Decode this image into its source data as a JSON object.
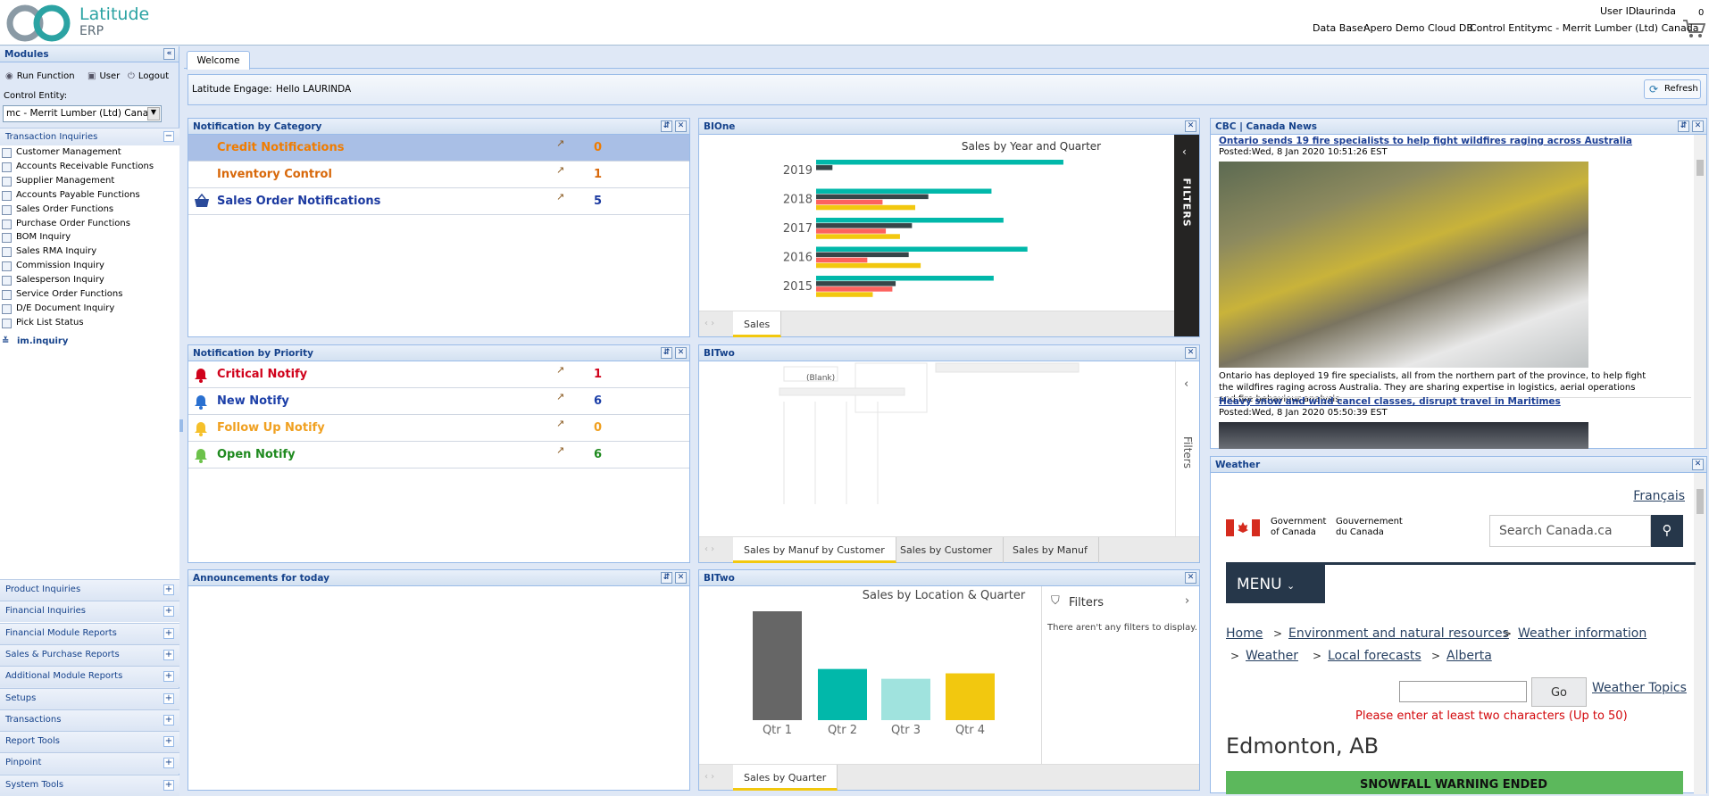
{
  "header": {
    "logo_line1": "Latitude",
    "logo_line2": "ERP",
    "user_id_label": "User ID:",
    "user_id": "laurinda",
    "cart_count": 0,
    "database_label": "Data Base:",
    "database": "Apero Demo Cloud DB",
    "control_entity_label": "Control Entity:",
    "control_entity": "mc - Merrit Lumber (Ltd) Canada"
  },
  "sidebar": {
    "title": "Modules",
    "actions": [
      "Run Function",
      "User",
      "Logout"
    ],
    "control_entity_label": "Control Entity:",
    "control_entity_value": "mc - Merrit Lumber (Ltd) Canada",
    "open_section": "Transaction Inquiries",
    "items": [
      "Customer Management",
      "Accounts Receivable Functions",
      "Supplier Management",
      "Accounts Payable Functions",
      "Sales Order Functions",
      "Purchase Order Functions",
      "BOM Inquiry",
      "Sales RMA Inquiry",
      "Commission Inquiry",
      "Salesperson Inquiry",
      "Service Order Functions",
      "D/E Document Inquiry",
      "Pick List Status"
    ],
    "extra_item": "im.inquiry",
    "sections": [
      "Product Inquiries",
      "Financial Inquiries",
      "Financial Module Reports",
      "Sales & Purchase Reports",
      "Additional Module Reports",
      "Setups",
      "Transactions",
      "Report Tools",
      "Pinpoint",
      "System Tools"
    ]
  },
  "tabs": [
    "Welcome"
  ],
  "engage": {
    "label": "Latitude Engage:",
    "greeting": "Hello LAURINDA",
    "refresh": "Refresh"
  },
  "notification_by_category": {
    "title": "Notification by Category",
    "rows": [
      {
        "label": "Credit Notifications",
        "count": 0
      },
      {
        "label": "Inventory Control",
        "count": 1
      },
      {
        "label": "Sales Order Notifications",
        "count": 5
      }
    ]
  },
  "notification_by_priority": {
    "title": "Notification by Priority",
    "rows": [
      {
        "label": "Critical Notify",
        "count": 1
      },
      {
        "label": "New Notify",
        "count": 6
      },
      {
        "label": "Follow Up Notify",
        "count": 0
      },
      {
        "label": "Open Notify",
        "count": 6
      }
    ]
  },
  "announcements": {
    "title": "Announcements for today"
  },
  "bione": {
    "title": "BIOne",
    "filters": "FILTERS",
    "tabs": [
      "Sales"
    ],
    "chart": {
      "type": "bar",
      "title": "Sales by Year and Quarter",
      "categories": [
        "2019",
        "2018",
        "2017",
        "2016",
        "2015"
      ],
      "series": [
        {
          "color": "#01b8aa",
          "values": [
            227,
            161,
            172,
            194,
            163
          ]
        },
        {
          "color": "#374649",
          "values": [
            15,
            103,
            88,
            85,
            73
          ]
        },
        {
          "color": "#fd625e",
          "values": [
            null,
            61,
            64,
            47,
            70
          ]
        },
        {
          "color": "#f2c80f",
          "values": [
            null,
            91,
            77,
            96,
            52
          ]
        }
      ]
    }
  },
  "bitwo_manuf": {
    "title": "BITwo",
    "blank": "(Blank)",
    "filters": "Filters",
    "tabs": [
      "Sales by Manuf by Customer",
      "Sales by Customer",
      "Sales by Manuf"
    ]
  },
  "bitwo_quarter": {
    "title": "BITwo",
    "filters_title": "Filters",
    "filters_note": "There aren't any filters to display.",
    "tabs": [
      "Sales by Quarter"
    ],
    "chart": {
      "type": "bar",
      "title": "Sales by Location & Quarter",
      "categories": [
        "Qtr 1",
        "Qtr 2",
        "Qtr 3",
        "Qtr 4"
      ],
      "values": [
        100,
        47,
        38,
        43
      ],
      "colors": [
        "#666666",
        "#01b8aa",
        "#a0e3de",
        "#f2c80f"
      ]
    }
  },
  "cbc": {
    "title": "CBC | Canada News",
    "articles": [
      {
        "headline": "Ontario sends 19 fire specialists to help fight wildfires raging across Australia",
        "posted": "Posted:Wed, 8 Jan 2020 10:51:26 EST",
        "summary": "Ontario has deployed 19 fire specialists, all from the northern part of the province, to help fight the wildfires raging across Australia. They are sharing expertise in logistics, aerial operations and fire behaviour analysis."
      },
      {
        "headline": "Heavy snow and wind cancel classes, disrupt travel in Maritimes",
        "posted": "Posted:Wed, 8 Jan 2020 05:50:39 EST"
      }
    ]
  },
  "weather": {
    "title": "Weather",
    "language": "Français",
    "gov_en": [
      "Government",
      "of Canada"
    ],
    "gov_fr": [
      "Gouvernement",
      "du Canada"
    ],
    "search_placeholder": "Search Canada.ca",
    "menu": "MENU",
    "breadcrumbs": [
      "Home",
      "Environment and natural resources",
      "Weather information",
      "Weather",
      "Local forecasts",
      "Alberta"
    ],
    "go": "Go",
    "weather_topics": "Weather Topics",
    "error": "Please enter at least two characters (Up to 50)",
    "city": "Edmonton, AB",
    "banner": "SNOWFALL WARNING ENDED"
  }
}
